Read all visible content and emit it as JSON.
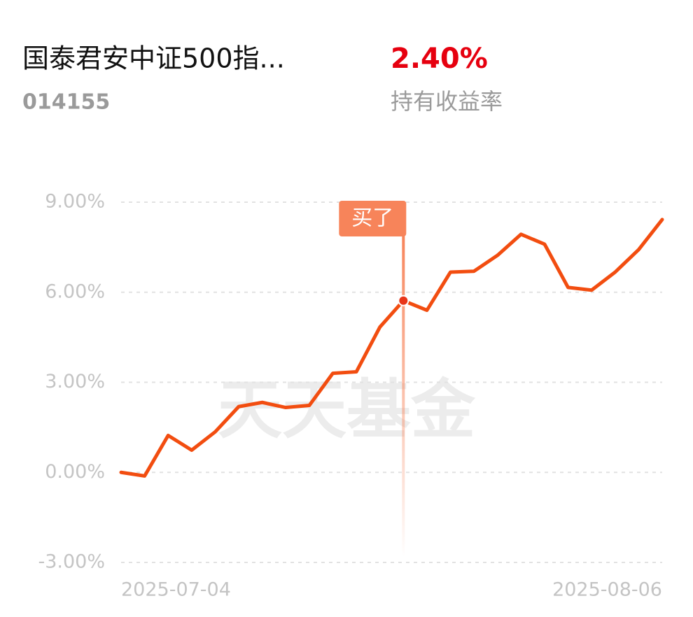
{
  "header": {
    "fund_name": "国泰君安中证500指...",
    "fund_code": "014155",
    "return_value": "2.40%",
    "return_label": "持有收益率"
  },
  "chart_data": {
    "type": "line",
    "watermark": "天天基金",
    "categories": [
      "2025-07-04",
      null,
      null,
      null,
      null,
      null,
      null,
      null,
      null,
      null,
      null,
      null,
      null,
      null,
      null,
      null,
      null,
      null,
      null,
      null,
      null,
      null,
      null,
      "2025-08-06"
    ],
    "values": [
      0.0,
      -0.12,
      1.23,
      0.74,
      1.35,
      2.19,
      2.33,
      2.16,
      2.23,
      3.3,
      3.35,
      4.84,
      5.72,
      5.4,
      6.67,
      6.7,
      7.23,
      7.93,
      7.6,
      6.16,
      6.07,
      6.67,
      7.42,
      8.42
    ],
    "color": "#f24d10",
    "ylim": [
      -3,
      9
    ],
    "yticks": [
      {
        "value": -3,
        "label": "-3.00%"
      },
      {
        "value": 0,
        "label": "0.00%"
      },
      {
        "value": 3,
        "label": "3.00%"
      },
      {
        "value": 6,
        "label": "6.00%"
      },
      {
        "value": 9,
        "label": "9.00%"
      }
    ],
    "grid": true,
    "buy_marker": {
      "label": "买了",
      "index": 12
    }
  }
}
